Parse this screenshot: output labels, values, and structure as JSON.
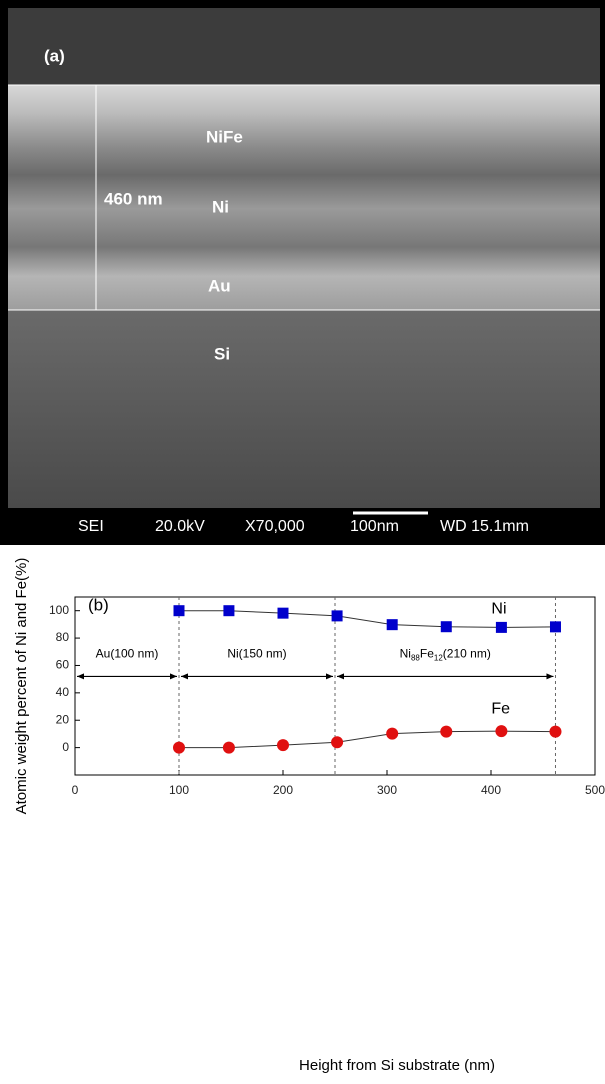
{
  "image": {
    "panel_label": "(a)",
    "layers": [
      "NiFe",
      "Ni",
      "Au",
      "Si"
    ],
    "thickness_label": "460 nm",
    "info_bar": [
      "SEI",
      "20.0kV",
      "X70,000",
      "100nm",
      "WD 15.1mm"
    ]
  },
  "chart_data": {
    "type": "line",
    "panel_label": "(b)",
    "x_label": "Height from Si substrate (nm)",
    "y_label": "Atomic weight percent of Ni and Fe(%)",
    "xlim": [
      0,
      500
    ],
    "ylim": [
      -20,
      110
    ],
    "xticks": [
      0,
      100,
      200,
      300,
      400,
      500
    ],
    "yticks": [
      0,
      20,
      40,
      60,
      80,
      100
    ],
    "series": [
      {
        "name": "Ni",
        "color": "#0000cc",
        "marker": "square",
        "x": [
          100,
          148,
          200,
          252,
          305,
          357,
          410,
          462
        ],
        "values": [
          100,
          100,
          98.2,
          96.2,
          89.8,
          88.3,
          87.8,
          88.2
        ]
      },
      {
        "name": "Fe",
        "color": "#e01010",
        "marker": "circle",
        "x": [
          100,
          148,
          200,
          252,
          305,
          357,
          410,
          462
        ],
        "values": [
          0,
          0,
          1.8,
          3.9,
          10.2,
          11.7,
          12.0,
          11.7
        ]
      }
    ],
    "dividers": [
      100,
      250,
      462
    ],
    "regions": [
      {
        "parts": [
          "Au(100 nm)"
        ],
        "from": 0,
        "to": 100
      },
      {
        "parts": [
          "Ni(150 nm)"
        ],
        "from": 100,
        "to": 250
      },
      {
        "parts": [
          "Ni",
          "88",
          "Fe",
          "12",
          "(210 nm)"
        ],
        "from": 250,
        "to": 462
      }
    ],
    "arrow_level": 52
  }
}
